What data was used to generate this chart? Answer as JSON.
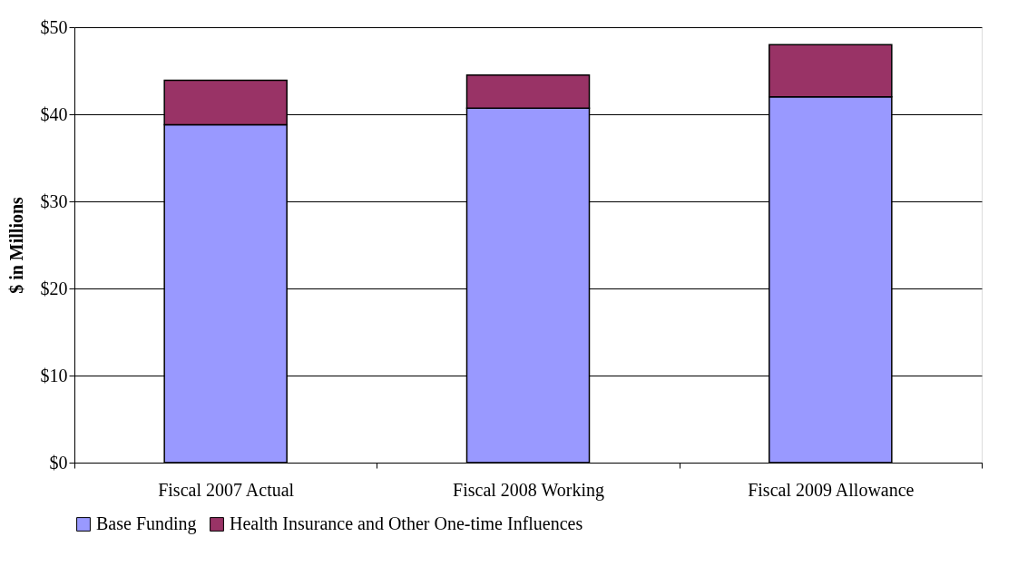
{
  "chart_data": {
    "type": "bar",
    "stacked": true,
    "ylabel": "$ in Millions",
    "categories": [
      "Fiscal 2007 Actual",
      "Fiscal 2008 Working",
      "Fiscal 2009 Allowance"
    ],
    "series": [
      {
        "name": "Base Funding",
        "color": "#9999ff",
        "values": [
          38.8,
          40.7,
          42.0
        ]
      },
      {
        "name": "Health Insurance and Other One-time Influences",
        "color": "#993366",
        "values": [
          5.1,
          3.8,
          6.0
        ]
      }
    ],
    "ylim": [
      0,
      50
    ],
    "yticks": [
      {
        "value": 0,
        "label": "$0"
      },
      {
        "value": 10,
        "label": "$10"
      },
      {
        "value": 20,
        "label": "$20"
      },
      {
        "value": 30,
        "label": "$30"
      },
      {
        "value": 40,
        "label": "$40"
      },
      {
        "value": 50,
        "label": "$50"
      }
    ],
    "grid": "y",
    "legend": "bottom"
  }
}
